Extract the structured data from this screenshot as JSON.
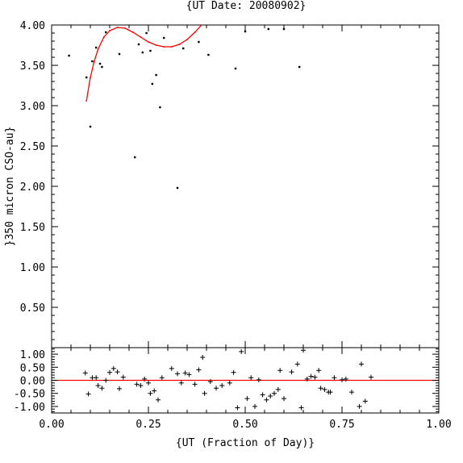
{
  "chart_data": [
    {
      "type": "scatter",
      "title": "{UT Date: 20080902}",
      "xlabel": "",
      "ylabel": "}350 micron CSO-au}",
      "xlim": [
        0,
        1
      ],
      "ylim": [
        0,
        4
      ],
      "xticks": [
        "",
        "",
        "",
        "",
        ""
      ],
      "yticks": [
        "",
        "0.50",
        "1.00",
        "1.50",
        "2.00",
        "2.50",
        "3.00",
        "3.50",
        "4.00"
      ],
      "grid": false,
      "colors": {
        "points": "#000000",
        "fit": "#ff0000"
      },
      "points": [
        {
          "x": 0.045,
          "y": 3.62
        },
        {
          "x": 0.09,
          "y": 3.35
        },
        {
          "x": 0.1,
          "y": 2.74
        },
        {
          "x": 0.105,
          "y": 3.55
        },
        {
          "x": 0.115,
          "y": 3.72
        },
        {
          "x": 0.125,
          "y": 3.52
        },
        {
          "x": 0.13,
          "y": 3.48
        },
        {
          "x": 0.14,
          "y": 3.91
        },
        {
          "x": 0.175,
          "y": 3.64
        },
        {
          "x": 0.215,
          "y": 2.36
        },
        {
          "x": 0.225,
          "y": 3.76
        },
        {
          "x": 0.235,
          "y": 3.66
        },
        {
          "x": 0.245,
          "y": 3.9
        },
        {
          "x": 0.255,
          "y": 3.68
        },
        {
          "x": 0.26,
          "y": 3.27
        },
        {
          "x": 0.27,
          "y": 3.38
        },
        {
          "x": 0.28,
          "y": 2.98
        },
        {
          "x": 0.29,
          "y": 3.84
        },
        {
          "x": 0.325,
          "y": 1.98
        },
        {
          "x": 0.34,
          "y": 3.71
        },
        {
          "x": 0.38,
          "y": 3.79
        },
        {
          "x": 0.405,
          "y": 3.63
        },
        {
          "x": 0.475,
          "y": 3.46
        },
        {
          "x": 0.5,
          "y": 3.92
        },
        {
          "x": 0.56,
          "y": 3.95
        },
        {
          "x": 0.6,
          "y": 3.95
        },
        {
          "x": 0.64,
          "y": 3.48
        }
      ],
      "fit": [
        {
          "x": 0.09,
          "y": 3.06
        },
        {
          "x": 0.1,
          "y": 3.35
        },
        {
          "x": 0.11,
          "y": 3.55
        },
        {
          "x": 0.12,
          "y": 3.7
        },
        {
          "x": 0.135,
          "y": 3.85
        },
        {
          "x": 0.15,
          "y": 3.93
        },
        {
          "x": 0.17,
          "y": 3.97
        },
        {
          "x": 0.19,
          "y": 3.96
        },
        {
          "x": 0.21,
          "y": 3.91
        },
        {
          "x": 0.23,
          "y": 3.85
        },
        {
          "x": 0.25,
          "y": 3.79
        },
        {
          "x": 0.27,
          "y": 3.75
        },
        {
          "x": 0.29,
          "y": 3.73
        },
        {
          "x": 0.31,
          "y": 3.73
        },
        {
          "x": 0.33,
          "y": 3.76
        },
        {
          "x": 0.35,
          "y": 3.82
        },
        {
          "x": 0.37,
          "y": 3.91
        },
        {
          "x": 0.385,
          "y": 3.99
        }
      ]
    },
    {
      "type": "scatter",
      "xlabel": "{UT (Fraction of Day)}",
      "ylabel": "",
      "xlim": [
        0,
        1
      ],
      "ylim": [
        -1.25,
        1.25
      ],
      "xticks": [
        "0.00",
        "0.25",
        "0.50",
        "0.75",
        "1.00"
      ],
      "yticks": [
        "-1.00",
        "-0.50",
        "0.00",
        "0.50",
        "1.00"
      ],
      "grid": false,
      "reference_line": 0,
      "colors": {
        "points": "#000000",
        "zero": "#ff0000"
      },
      "points": [
        {
          "x": 0.087,
          "y": 0.28
        },
        {
          "x": 0.095,
          "y": -0.52
        },
        {
          "x": 0.105,
          "y": 0.1
        },
        {
          "x": 0.115,
          "y": 0.1
        },
        {
          "x": 0.12,
          "y": -0.2
        },
        {
          "x": 0.13,
          "y": -0.3
        },
        {
          "x": 0.14,
          "y": 0.0
        },
        {
          "x": 0.15,
          "y": 0.3
        },
        {
          "x": 0.16,
          "y": 0.45
        },
        {
          "x": 0.17,
          "y": 0.32
        },
        {
          "x": 0.175,
          "y": -0.32
        },
        {
          "x": 0.185,
          "y": 0.12
        },
        {
          "x": 0.22,
          "y": -0.15
        },
        {
          "x": 0.23,
          "y": -0.2
        },
        {
          "x": 0.24,
          "y": 0.05
        },
        {
          "x": 0.25,
          "y": -0.1
        },
        {
          "x": 0.255,
          "y": -0.5
        },
        {
          "x": 0.265,
          "y": -0.4
        },
        {
          "x": 0.275,
          "y": -0.75
        },
        {
          "x": 0.285,
          "y": 0.1
        },
        {
          "x": 0.31,
          "y": 0.45
        },
        {
          "x": 0.325,
          "y": 0.25
        },
        {
          "x": 0.335,
          "y": -0.1
        },
        {
          "x": 0.345,
          "y": 0.28
        },
        {
          "x": 0.355,
          "y": 0.22
        },
        {
          "x": 0.37,
          "y": -0.15
        },
        {
          "x": 0.38,
          "y": 0.4
        },
        {
          "x": 0.39,
          "y": 0.88
        },
        {
          "x": 0.395,
          "y": -0.5
        },
        {
          "x": 0.41,
          "y": -0.05
        },
        {
          "x": 0.425,
          "y": -0.3
        },
        {
          "x": 0.44,
          "y": -0.2
        },
        {
          "x": 0.46,
          "y": -0.1
        },
        {
          "x": 0.47,
          "y": 0.3
        },
        {
          "x": 0.48,
          "y": -1.05
        },
        {
          "x": 0.49,
          "y": 1.1
        },
        {
          "x": 0.505,
          "y": -0.7
        },
        {
          "x": 0.515,
          "y": 0.1
        },
        {
          "x": 0.525,
          "y": -1.0
        },
        {
          "x": 0.535,
          "y": 0.02
        },
        {
          "x": 0.545,
          "y": -0.55
        },
        {
          "x": 0.555,
          "y": -0.75
        },
        {
          "x": 0.565,
          "y": -0.6
        },
        {
          "x": 0.575,
          "y": -0.5
        },
        {
          "x": 0.585,
          "y": -0.35
        },
        {
          "x": 0.59,
          "y": 0.38
        },
        {
          "x": 0.6,
          "y": -0.7
        },
        {
          "x": 0.62,
          "y": 0.32
        },
        {
          "x": 0.635,
          "y": 0.62
        },
        {
          "x": 0.645,
          "y": -1.05
        },
        {
          "x": 0.65,
          "y": 1.15
        },
        {
          "x": 0.66,
          "y": 0.05
        },
        {
          "x": 0.67,
          "y": 0.15
        },
        {
          "x": 0.68,
          "y": 0.12
        },
        {
          "x": 0.69,
          "y": 0.38
        },
        {
          "x": 0.695,
          "y": -0.3
        },
        {
          "x": 0.705,
          "y": -0.35
        },
        {
          "x": 0.715,
          "y": -0.45
        },
        {
          "x": 0.72,
          "y": -0.45
        },
        {
          "x": 0.73,
          "y": 0.1
        },
        {
          "x": 0.75,
          "y": 0.02
        },
        {
          "x": 0.76,
          "y": 0.05
        },
        {
          "x": 0.775,
          "y": -0.45
        },
        {
          "x": 0.795,
          "y": -1.0
        },
        {
          "x": 0.8,
          "y": 0.62
        },
        {
          "x": 0.81,
          "y": -0.8
        },
        {
          "x": 0.825,
          "y": 0.12
        }
      ]
    }
  ]
}
